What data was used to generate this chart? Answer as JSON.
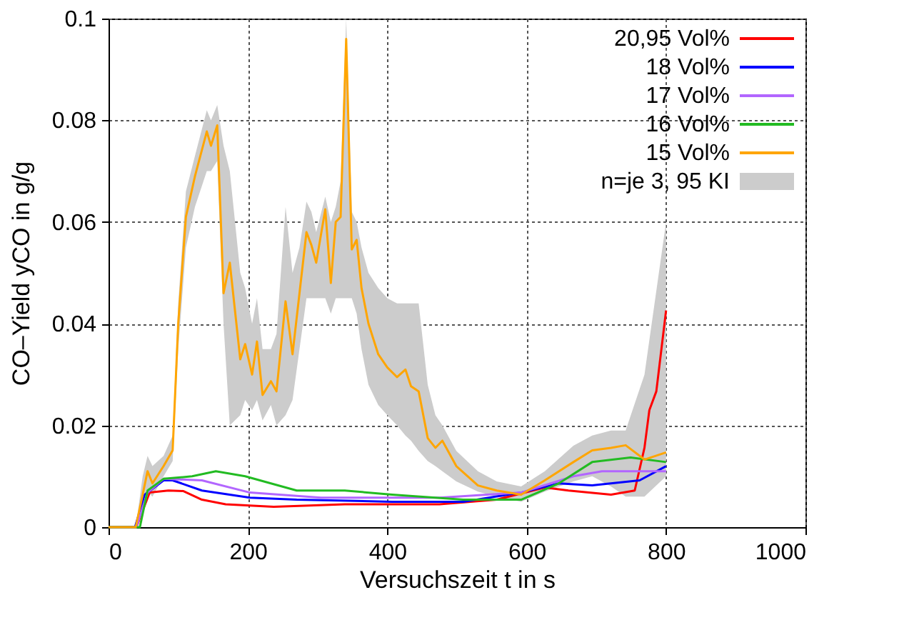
{
  "chart_data": {
    "type": "line",
    "xlabel": "Versuchszeit t in s",
    "ylabel": "CO–Yield yCO in g/g",
    "xlim": [
      0,
      1000
    ],
    "xticks": [
      0,
      200,
      400,
      600,
      800,
      1000
    ],
    "ylim": [
      0,
      0.1
    ],
    "yticks": [
      0,
      0.02,
      0.04,
      0.06,
      0.08,
      0.1
    ],
    "grid": true,
    "legend": "top right",
    "line_style": "solid",
    "marker": "none",
    "annotations": [
      "n=je 3, 95 KI"
    ],
    "series": [
      {
        "name": "20,95 Vol%",
        "color": "#ff0000",
        "x": [
          0,
          40,
          59,
          86,
          107,
          134,
          168,
          237,
          339,
          475,
          557,
          626,
          660,
          721,
          755,
          769,
          776,
          786,
          800
        ],
        "values": [
          0,
          0,
          0.0068,
          0.0072,
          0.0071,
          0.0054,
          0.0045,
          0.004,
          0.0045,
          0.0045,
          0.0054,
          0.0078,
          0.0072,
          0.0064,
          0.0072,
          0.0156,
          0.023,
          0.0267,
          0.0426
        ]
      },
      {
        "name": "18 Vol%",
        "color": "#0000ff",
        "x": [
          0,
          38,
          52,
          79,
          92,
          134,
          203,
          270,
          407,
          509,
          592,
          646,
          694,
          762,
          800
        ],
        "values": [
          0,
          0,
          0.0064,
          0.0092,
          0.0092,
          0.0072,
          0.0058,
          0.0054,
          0.005,
          0.005,
          0.0068,
          0.0086,
          0.0082,
          0.0092,
          0.012
        ]
      },
      {
        "name": "17 Vol%",
        "color": "#b266ff",
        "x": [
          0,
          40,
          56,
          79,
          134,
          203,
          305,
          475,
          592,
          667,
          708,
          762,
          800
        ],
        "values": [
          0,
          0,
          0.0068,
          0.0095,
          0.0092,
          0.0068,
          0.0058,
          0.0058,
          0.0068,
          0.01,
          0.011,
          0.011,
          0.011
        ]
      },
      {
        "name": "16 Vol%",
        "color": "#22bb22",
        "x": [
          0,
          45,
          56,
          79,
          120,
          154,
          196,
          270,
          339,
          407,
          509,
          592,
          646,
          694,
          749,
          800
        ],
        "values": [
          0,
          0,
          0.0072,
          0.0095,
          0.01,
          0.011,
          0.01,
          0.0072,
          0.0072,
          0.0064,
          0.0054,
          0.0054,
          0.0086,
          0.0128,
          0.0137,
          0.0128
        ]
      },
      {
        "name": "15 Vol%",
        "color": "#ffa500",
        "x": [
          0,
          39,
          49,
          56,
          63,
          79,
          92,
          100,
          111,
          124,
          141,
          147,
          156,
          165,
          174,
          189,
          196,
          206,
          213,
          221,
          233,
          241,
          254,
          264,
          274,
          284,
          291,
          298,
          311,
          319,
          326,
          333,
          341,
          349,
          356,
          363,
          373,
          387,
          400,
          414,
          426,
          434,
          445,
          458,
          469,
          479,
          499,
          530,
          557,
          592,
          626,
          667,
          694,
          721,
          742,
          769,
          800
        ],
        "values": [
          0,
          0,
          0.0064,
          0.011,
          0.0086,
          0.012,
          0.0151,
          0.04,
          0.061,
          0.069,
          0.0778,
          0.075,
          0.079,
          0.046,
          0.052,
          0.033,
          0.036,
          0.03,
          0.0365,
          0.026,
          0.0287,
          0.0267,
          0.0444,
          0.034,
          0.046,
          0.058,
          0.0555,
          0.052,
          0.0625,
          0.048,
          0.06,
          0.061,
          0.096,
          0.0546,
          0.0565,
          0.047,
          0.04,
          0.034,
          0.0314,
          0.0295,
          0.031,
          0.0277,
          0.0267,
          0.0175,
          0.0156,
          0.017,
          0.012,
          0.0082,
          0.0072,
          0.0064,
          0.0092,
          0.0128,
          0.0151,
          0.0156,
          0.0161,
          0.0133,
          0.0147
        ],
        "lower": [
          0,
          0,
          0.003,
          0.007,
          0.006,
          0.01,
          0.013,
          0.035,
          0.055,
          0.063,
          0.07,
          0.07,
          0.072,
          0.04,
          0.02,
          0.022,
          0.025,
          0.023,
          0.025,
          0.021,
          0.024,
          0.02,
          0.022,
          0.025,
          0.035,
          0.045,
          0.045,
          0.045,
          0.045,
          0.042,
          0.045,
          0.045,
          0.045,
          0.045,
          0.042,
          0.035,
          0.028,
          0.024,
          0.022,
          0.02,
          0.018,
          0.017,
          0.015,
          0.013,
          0.012,
          0.011,
          0.009,
          0.007,
          0.006,
          0.005,
          0.007,
          0.009,
          0.01,
          0.008,
          0.006,
          0.006,
          0.01
        ],
        "upper": [
          0,
          0,
          0.01,
          0.014,
          0.012,
          0.014,
          0.018,
          0.044,
          0.066,
          0.073,
          0.082,
          0.08,
          0.083,
          0.075,
          0.07,
          0.05,
          0.047,
          0.04,
          0.045,
          0.035,
          0.035,
          0.038,
          0.063,
          0.05,
          0.055,
          0.064,
          0.062,
          0.058,
          0.065,
          0.06,
          0.063,
          0.068,
          0.1,
          0.062,
          0.06,
          0.055,
          0.05,
          0.047,
          0.045,
          0.044,
          0.044,
          0.044,
          0.044,
          0.028,
          0.022,
          0.02,
          0.015,
          0.011,
          0.009,
          0.008,
          0.011,
          0.016,
          0.018,
          0.019,
          0.019,
          0.03,
          0.06
        ]
      }
    ]
  }
}
